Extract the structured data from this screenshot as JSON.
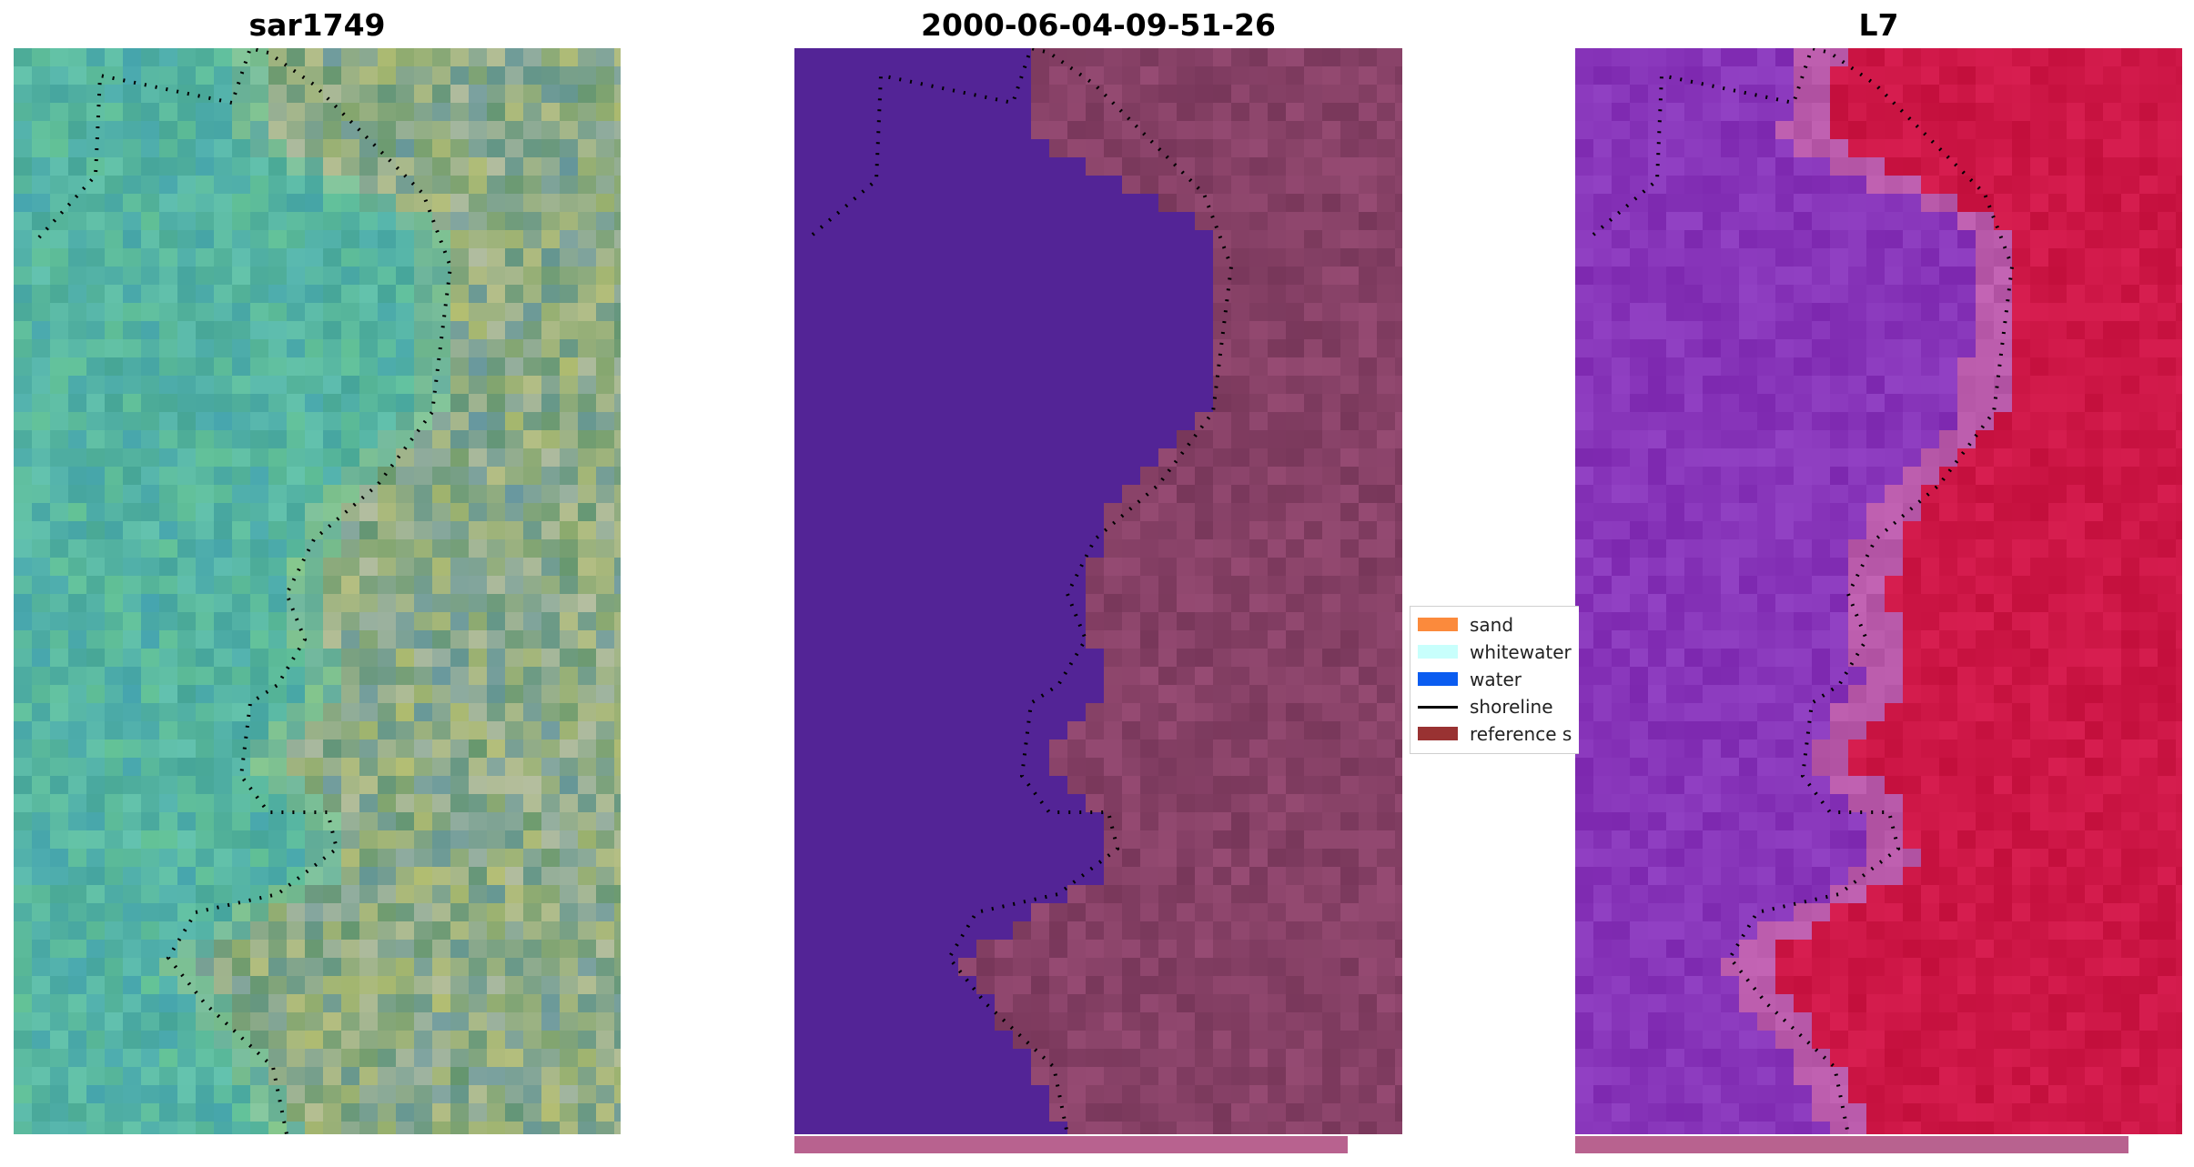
{
  "panels": [
    {
      "title": "sar1749",
      "style": "natural-color (green/teal)"
    },
    {
      "title": "2000-06-04-09-51-26",
      "style": "classified overlay"
    },
    {
      "title": "L7",
      "style": "purple/red index"
    }
  ],
  "legend": {
    "items": [
      {
        "label": "sand",
        "color": "#fb8a3c",
        "kind": "patch"
      },
      {
        "label": "whitewater",
        "color": "#c8fffc",
        "kind": "patch"
      },
      {
        "label": "water",
        "color": "#0a5cf0",
        "kind": "patch"
      },
      {
        "label": "shoreline",
        "color": "#000000",
        "kind": "line"
      },
      {
        "label": "reference s",
        "color": "#993232",
        "kind": "patch"
      }
    ]
  },
  "colors": {
    "water_class": "#532496",
    "land_class": "#7e3a5e",
    "sar_teal": "#4fae96",
    "sar_land": "#6c9e7c",
    "l7_water": "#8030a8",
    "l7_land": "#c8103a",
    "progress_bar": "#b8628f"
  }
}
